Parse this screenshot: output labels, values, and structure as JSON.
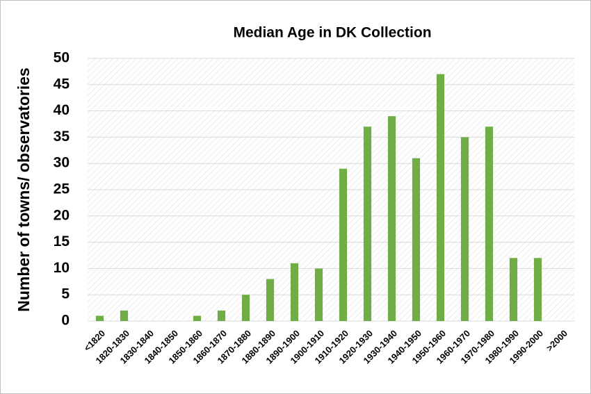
{
  "chart_data": {
    "type": "bar",
    "title": "Median Age in DK Collection",
    "y_label": "Number of towns/ observatories",
    "categories": [
      "<1820",
      "1820-1830",
      "1830-1840",
      "1840-1850",
      "1850-1860",
      "1860-1870",
      "1870-1880",
      "1880-1890",
      "1890-1900",
      "1900-1910",
      "1910-1920",
      "1920-1930",
      "1930-1940",
      "1940-1950",
      "1950-1960",
      "1960-1970",
      "1970-1980",
      "1980-1990",
      "1990-2000",
      ">2000"
    ],
    "values": [
      1,
      2,
      0,
      0,
      1,
      2,
      5,
      8,
      11,
      10,
      29,
      37,
      39,
      31,
      47,
      35,
      37,
      12,
      12,
      0
    ],
    "color": "#70ad47",
    "ylim": [
      0,
      50
    ],
    "yticks": [
      0,
      5,
      10,
      15,
      20,
      25,
      30,
      35,
      40,
      45,
      50
    ],
    "grid": true
  }
}
